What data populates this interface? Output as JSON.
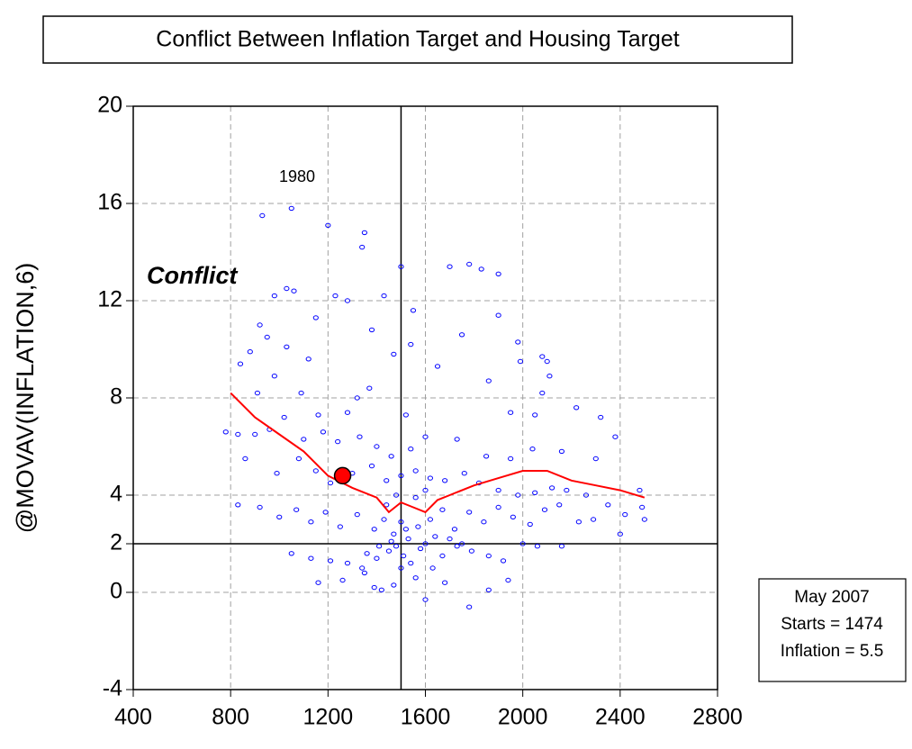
{
  "chart_data": {
    "type": "scatter",
    "title": "Conflict Between Inflation Target and Housing Target",
    "y_label": "@MOVAV(INFLATION,6)",
    "xlim": [
      400,
      2800
    ],
    "xticks": [
      400,
      800,
      1200,
      1600,
      2000,
      2400,
      2800
    ],
    "ylim": [
      -4,
      20
    ],
    "yticks": [
      -4,
      0,
      2,
      4,
      8,
      12,
      16,
      20
    ],
    "grid": true,
    "color": "#0000ff",
    "reference_x": 1500,
    "reference_y": 2,
    "x": [
      1050,
      930,
      1200,
      1350,
      1340,
      1500,
      1700,
      1780,
      1830,
      1900,
      1030,
      1060,
      980,
      1230,
      1280,
      1430,
      1550,
      1150,
      920,
      880,
      840,
      950,
      1030,
      1120,
      1380,
      1470,
      1540,
      1650,
      1750,
      1900,
      1980,
      2080,
      2100,
      1990,
      1860,
      2110,
      2080,
      910,
      980,
      1090,
      1370,
      1320,
      1520,
      1280,
      1160,
      1020,
      1950,
      2050,
      2220,
      2320,
      2380,
      780,
      830,
      900,
      960,
      1100,
      1180,
      1240,
      1330,
      1400,
      1460,
      1540,
      1600,
      1730,
      1850,
      1950,
      2040,
      2160,
      2300,
      860,
      990,
      1080,
      1150,
      1210,
      1300,
      1380,
      1440,
      1500,
      1560,
      1620,
      1680,
      1760,
      1820,
      1900,
      1980,
      2050,
      2120,
      2180,
      2260,
      2350,
      2480,
      830,
      920,
      1000,
      1070,
      1130,
      1190,
      1250,
      1320,
      1390,
      1430,
      1470,
      1500,
      1530,
      1570,
      1620,
      1670,
      1720,
      1780,
      1840,
      1900,
      1960,
      2030,
      2090,
      2150,
      2230,
      2290,
      2420,
      2500,
      2490,
      1050,
      1130,
      1210,
      1280,
      1340,
      1400,
      1450,
      1480,
      1510,
      1540,
      1580,
      1630,
      1670,
      1730,
      1790,
      1860,
      1920,
      2000,
      2060,
      2160,
      2400,
      1160,
      1260,
      1350,
      1420,
      1470,
      1560,
      1600,
      1680,
      1780,
      1860,
      1940,
      1390,
      1500,
      1460,
      1520,
      1560,
      1600,
      1480,
      1440,
      1410,
      1360,
      1600,
      1640,
      1700,
      1750
    ],
    "y": [
      15.8,
      15.5,
      15.1,
      14.8,
      14.2,
      13.4,
      13.4,
      13.5,
      13.3,
      13.1,
      12.5,
      12.4,
      12.2,
      12.2,
      12.0,
      12.2,
      11.6,
      11.3,
      11.0,
      9.9,
      9.4,
      10.5,
      10.1,
      9.6,
      10.8,
      9.8,
      10.2,
      9.3,
      10.6,
      11.4,
      10.3,
      9.7,
      9.5,
      9.5,
      8.7,
      8.9,
      8.2,
      8.2,
      8.9,
      8.2,
      8.4,
      8.0,
      7.3,
      7.4,
      7.3,
      7.2,
      7.4,
      7.3,
      7.6,
      7.2,
      6.4,
      6.6,
      6.5,
      6.5,
      6.7,
      6.3,
      6.6,
      6.2,
      6.4,
      6.0,
      5.6,
      5.9,
      6.4,
      6.3,
      5.6,
      5.5,
      5.9,
      5.8,
      5.5,
      5.5,
      4.9,
      5.5,
      5.0,
      4.5,
      4.9,
      5.2,
      4.6,
      4.8,
      5.0,
      4.7,
      4.6,
      4.9,
      4.5,
      4.2,
      4.0,
      4.1,
      4.3,
      4.2,
      4.0,
      3.6,
      4.2,
      3.6,
      3.5,
      3.1,
      3.4,
      2.9,
      3.3,
      2.7,
      3.2,
      2.6,
      3.0,
      2.4,
      2.9,
      2.2,
      2.7,
      3.0,
      3.4,
      2.6,
      3.3,
      2.9,
      3.5,
      3.1,
      2.8,
      3.4,
      3.6,
      2.9,
      3.0,
      3.2,
      3.0,
      3.5,
      1.6,
      1.4,
      1.3,
      1.2,
      1.0,
      1.4,
      1.7,
      1.9,
      1.5,
      1.2,
      1.8,
      1.0,
      1.5,
      1.9,
      1.7,
      1.5,
      1.3,
      2.0,
      1.9,
      1.9,
      2.4,
      0.4,
      0.5,
      0.8,
      0.1,
      0.3,
      0.6,
      -0.3,
      0.4,
      -0.6,
      0.1,
      0.5,
      0.2,
      1.0,
      2.1,
      2.6,
      3.9,
      4.2,
      4.0,
      3.6,
      1.9,
      1.6,
      2.0,
      2.3,
      2.2,
      2.0
    ],
    "fit_line": {
      "color": "#ff0000",
      "x": [
        800,
        900,
        1000,
        1100,
        1200,
        1300,
        1400,
        1450,
        1500,
        1550,
        1600,
        1650,
        1700,
        1800,
        1900,
        2000,
        2100,
        2200,
        2300,
        2400,
        2500
      ],
      "y": [
        8.2,
        7.2,
        6.5,
        5.8,
        4.8,
        4.3,
        3.9,
        3.3,
        3.7,
        3.5,
        3.3,
        3.8,
        4.0,
        4.4,
        4.7,
        5.0,
        5.0,
        4.6,
        4.4,
        4.2,
        3.9
      ]
    },
    "highlight": {
      "x": 1260,
      "y": 4.8,
      "color": "#ff0000"
    },
    "annotations": [
      "1980",
      "Conflict"
    ],
    "info_box": [
      "May 2007",
      "Starts = 1474",
      "Inflation = 5.5"
    ]
  }
}
